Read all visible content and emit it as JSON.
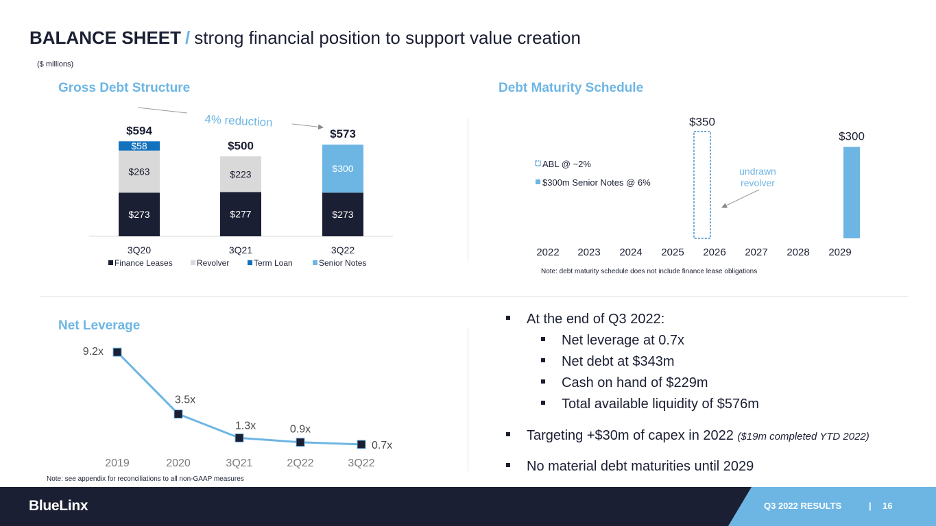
{
  "header": {
    "title_bold": "BALANCE SHEET",
    "title_slash": "/",
    "title_rest": "strong financial position to support value creation",
    "units": "($ millions)"
  },
  "colors": {
    "navy": "#1b1f33",
    "light_blue": "#6db6e4",
    "term_loan_blue": "#1372be",
    "revolver_gray": "#d9d9d9"
  },
  "sections": {
    "gross_debt": "Gross Debt Structure",
    "maturity": "Debt Maturity Schedule",
    "leverage": "Net Leverage"
  },
  "chart_data": [
    {
      "type": "bar",
      "stacked": true,
      "title": "Gross Debt Structure",
      "categories": [
        "3Q20",
        "3Q21",
        "3Q22"
      ],
      "totals": [
        "$594",
        "$500",
        "$573"
      ],
      "series": [
        {
          "name": "Finance Leases",
          "values": [
            273,
            277,
            273
          ],
          "labels": [
            "$273",
            "$277",
            "$273"
          ],
          "color": "#1b1f33",
          "text_color": "#ffffff"
        },
        {
          "name": "Revolver",
          "values": [
            263,
            223,
            0
          ],
          "labels": [
            "$263",
            "$223",
            ""
          ],
          "color": "#d9d9d9",
          "text_color": "#1b1f33"
        },
        {
          "name": "Term Loan",
          "values": [
            58,
            0,
            0
          ],
          "labels": [
            "$58",
            "",
            ""
          ],
          "color": "#1372be",
          "text_color": "#ffffff"
        },
        {
          "name": "Senior Notes",
          "values": [
            0,
            0,
            300
          ],
          "labels": [
            "",
            "",
            "$300"
          ],
          "color": "#6db6e4",
          "text_color": "#ffffff"
        }
      ],
      "annotation": "4% reduction",
      "legend_position": "bottom"
    },
    {
      "type": "bar",
      "title": "Debt Maturity Schedule",
      "categories": [
        "2022",
        "2023",
        "2024",
        "2025",
        "2026",
        "2027",
        "2028",
        "2029"
      ],
      "series": [
        {
          "name": "ABL @ ~2%",
          "values": [
            null,
            null,
            null,
            null,
            350,
            null,
            null,
            null
          ],
          "style": "dashed-outline",
          "color": "#1372be"
        },
        {
          "name": "$300m Senior Notes @ 6%",
          "values": [
            null,
            null,
            null,
            null,
            null,
            null,
            null,
            300
          ],
          "color": "#6db6e4"
        }
      ],
      "data_labels": {
        "ABL": "$350",
        "Senior Notes": "$300"
      },
      "annotation": "undrawn\nrevolver",
      "note": "Note: debt maturity schedule does not include finance lease obligations",
      "legend_position": "left"
    },
    {
      "type": "line",
      "title": "Net Leverage",
      "categories": [
        "2019",
        "2020",
        "3Q21",
        "2Q22",
        "3Q22"
      ],
      "values": [
        9.2,
        3.5,
        1.3,
        0.9,
        0.7
      ],
      "labels": [
        "9.2x",
        "3.5x",
        "1.3x",
        "0.9x",
        "0.7x"
      ],
      "ylim": [
        0,
        10
      ],
      "note": "Note: see appendix for reconciliations to all non-GAAP measures"
    }
  ],
  "bullets": {
    "main1": "At the end of Q3 2022:",
    "sub1": "Net leverage at 0.7x",
    "sub2": "Net debt at $343m",
    "sub3": "Cash on hand of $229m",
    "sub4": "Total available liquidity of $576m",
    "main2": "Targeting +$30m of capex in 2022",
    "main2_italic": "($19m completed YTD 2022)",
    "main3": "No material debt maturities until 2029"
  },
  "footer": {
    "logo": "BlueLinx",
    "report": "Q3 2022 RESULTS",
    "separator": "|",
    "page": "16"
  }
}
